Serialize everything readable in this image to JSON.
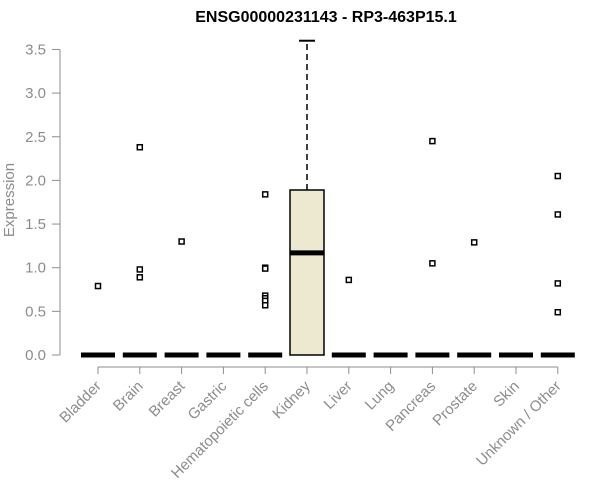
{
  "chart_data": {
    "type": "box",
    "title": "ENSG00000231143 - RP3-463P15.1",
    "xlabel": "",
    "ylabel": "Expression",
    "ylim": [
      0,
      3.6
    ],
    "yticks": [
      0.0,
      0.5,
      1.0,
      1.5,
      2.0,
      2.5,
      3.0,
      3.5
    ],
    "ytick_labels": [
      "0.0",
      "0.5",
      "1.0",
      "1.5",
      "2.0",
      "2.5",
      "3.0",
      "3.5"
    ],
    "grid": false,
    "box_color": "#ede8d0",
    "categories": [
      "Bladder",
      "Brain",
      "Breast",
      "Gastric",
      "Hematopoietic cells",
      "Kidney",
      "Liver",
      "Lung",
      "Pancreas",
      "Prostate",
      "Skin",
      "Unknown / Other"
    ],
    "boxes": [
      {
        "min": 0,
        "q1": 0,
        "median": 0,
        "q3": 0,
        "max": 0,
        "outliers": [
          0.79
        ]
      },
      {
        "min": 0,
        "q1": 0,
        "median": 0,
        "q3": 0,
        "max": 0,
        "outliers": [
          2.38,
          0.98,
          0.89
        ]
      },
      {
        "min": 0,
        "q1": 0,
        "median": 0,
        "q3": 0,
        "max": 0,
        "outliers": [
          1.3
        ]
      },
      {
        "min": 0,
        "q1": 0,
        "median": 0,
        "q3": 0,
        "max": 0,
        "outliers": []
      },
      {
        "min": 0,
        "q1": 0,
        "median": 0,
        "q3": 0,
        "max": 0,
        "outliers": [
          1.84,
          1.0,
          0.99,
          0.68,
          0.65,
          0.62,
          0.57
        ]
      },
      {
        "min": 0,
        "q1": 0,
        "median": 1.17,
        "q3": 1.89,
        "max": 3.6,
        "outliers": []
      },
      {
        "min": 0,
        "q1": 0,
        "median": 0,
        "q3": 0,
        "max": 0,
        "outliers": [
          0.86
        ]
      },
      {
        "min": 0,
        "q1": 0,
        "median": 0,
        "q3": 0,
        "max": 0,
        "outliers": []
      },
      {
        "min": 0,
        "q1": 0,
        "median": 0,
        "q3": 0,
        "max": 0,
        "outliers": [
          2.45,
          1.05
        ]
      },
      {
        "min": 0,
        "q1": 0,
        "median": 0,
        "q3": 0,
        "max": 0,
        "outliers": [
          1.29
        ]
      },
      {
        "min": 0,
        "q1": 0,
        "median": 0,
        "q3": 0,
        "max": 0,
        "outliers": []
      },
      {
        "min": 0,
        "q1": 0,
        "median": 0,
        "q3": 0,
        "max": 0,
        "outliers": [
          2.05,
          1.61,
          0.82,
          0.49
        ]
      }
    ]
  }
}
